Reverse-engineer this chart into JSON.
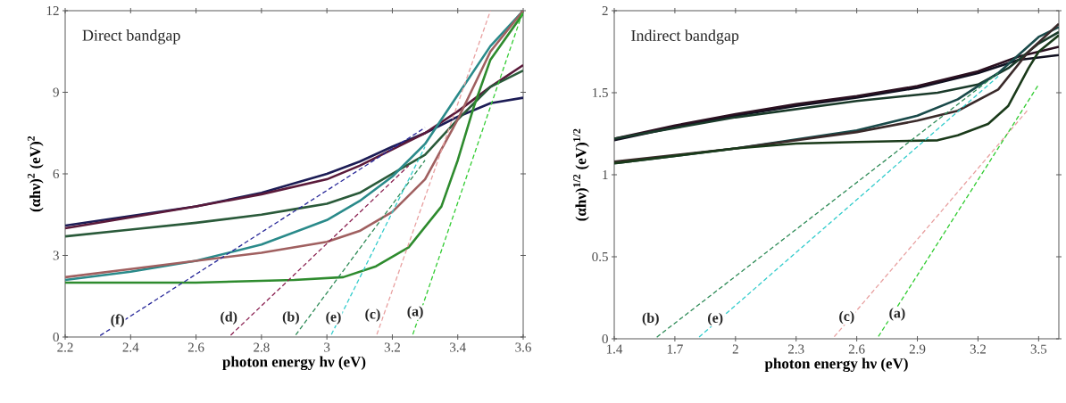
{
  "chart_data": [
    {
      "type": "line",
      "title": "Direct bandgap",
      "xlabel": "photon energy hν (eV)",
      "ylabel": "(αhν)$^{2}$ (eV)$^{2}$",
      "xlim": [
        2.2,
        3.6
      ],
      "ylim": [
        0,
        12
      ],
      "xticks": [
        2.2,
        2.4,
        2.6,
        2.8,
        3,
        3.2,
        3.4,
        3.6
      ],
      "yticks": [
        0,
        3,
        6,
        9,
        12
      ],
      "series": [
        {
          "color": "#1c1c55",
          "x": [
            2.2,
            2.4,
            2.6,
            2.8,
            3.0,
            3.1,
            3.2,
            3.3,
            3.4,
            3.5,
            3.6
          ],
          "values": [
            4.1,
            4.45,
            4.8,
            5.3,
            6.0,
            6.45,
            7.0,
            7.5,
            8.1,
            8.6,
            8.8
          ]
        },
        {
          "color": "#5a1a3a",
          "x": [
            2.2,
            2.4,
            2.6,
            2.8,
            3.0,
            3.1,
            3.2,
            3.3,
            3.4,
            3.5,
            3.6
          ],
          "values": [
            4.0,
            4.4,
            4.8,
            5.25,
            5.8,
            6.3,
            6.9,
            7.5,
            8.3,
            9.2,
            10.0
          ]
        },
        {
          "color": "#2a5a3a",
          "x": [
            2.2,
            2.4,
            2.6,
            2.8,
            2.9,
            3.0,
            3.1,
            3.2,
            3.3,
            3.4,
            3.5,
            3.6
          ],
          "values": [
            3.7,
            3.95,
            4.2,
            4.5,
            4.7,
            4.9,
            5.3,
            6.0,
            6.7,
            8.0,
            9.2,
            9.8
          ]
        },
        {
          "color": "#2a8a8a",
          "x": [
            2.2,
            2.4,
            2.6,
            2.8,
            3.0,
            3.1,
            3.2,
            3.3,
            3.4,
            3.5,
            3.6
          ],
          "values": [
            2.1,
            2.4,
            2.8,
            3.4,
            4.3,
            5.0,
            5.9,
            7.1,
            8.9,
            10.7,
            12.0
          ]
        },
        {
          "color": "#a06060",
          "x": [
            2.2,
            2.4,
            2.6,
            2.8,
            3.0,
            3.1,
            3.2,
            3.3,
            3.4,
            3.5,
            3.6
          ],
          "values": [
            2.2,
            2.5,
            2.8,
            3.1,
            3.5,
            3.9,
            4.6,
            5.8,
            8.0,
            10.5,
            12.0
          ]
        },
        {
          "color": "#2e8b2e",
          "x": [
            2.2,
            2.4,
            2.6,
            2.9,
            3.05,
            3.15,
            3.25,
            3.35,
            3.4,
            3.45,
            3.5,
            3.6
          ],
          "values": [
            2.0,
            2.0,
            2.0,
            2.1,
            2.2,
            2.6,
            3.3,
            4.8,
            6.5,
            8.5,
            10.2,
            11.9
          ]
        },
        {
          "color": "#2a2a9a",
          "line_style": "dashed",
          "x": [
            2.3,
            3.3
          ],
          "values": [
            0,
            7.7
          ]
        },
        {
          "color": "#8b2252",
          "line_style": "dashed",
          "x": [
            2.7,
            3.25
          ],
          "values": [
            0,
            6.3
          ]
        },
        {
          "color": "#2e8b57",
          "line_style": "dashed",
          "x": [
            2.9,
            3.3
          ],
          "values": [
            0,
            6.5
          ]
        },
        {
          "color": "#33cccc",
          "line_style": "dashed",
          "x": [
            3.01,
            3.3
          ],
          "values": [
            0,
            7.0
          ]
        },
        {
          "color": "#e8a0a0",
          "line_style": "dashed",
          "x": [
            3.15,
            3.5
          ],
          "values": [
            0,
            12.0
          ]
        },
        {
          "color": "#33cc33",
          "line_style": "dashed",
          "x": [
            3.26,
            3.6
          ],
          "values": [
            0,
            12.0
          ]
        }
      ],
      "annotations": [
        {
          "text": "(f)",
          "x": 2.36,
          "y": 0.6
        },
        {
          "text": "(d)",
          "x": 2.7,
          "y": 0.7
        },
        {
          "text": "(b)",
          "x": 2.89,
          "y": 0.7
        },
        {
          "text": "(e)",
          "x": 3.02,
          "y": 0.7
        },
        {
          "text": "(c)",
          "x": 3.14,
          "y": 0.8
        },
        {
          "text": "(a)",
          "x": 3.27,
          "y": 0.9
        }
      ]
    },
    {
      "type": "line",
      "title": "Indirect bandgap",
      "xlabel": "photon energy hν (eV)",
      "ylabel": "(αhν)$^{1/2}$ (eV)$^{1/2}$",
      "xlim": [
        1.4,
        3.6
      ],
      "ylim": [
        0,
        2
      ],
      "xticks": [
        1.4,
        1.7,
        2,
        2.3,
        2.6,
        2.9,
        3.2,
        3.5
      ],
      "yticks": [
        0,
        0.5,
        1,
        1.5,
        2
      ],
      "series": [
        {
          "color": "#101020",
          "x": [
            1.4,
            1.7,
            2.0,
            2.3,
            2.6,
            2.9,
            3.2,
            3.4,
            3.6
          ],
          "values": [
            1.21,
            1.29,
            1.36,
            1.42,
            1.47,
            1.53,
            1.62,
            1.7,
            1.73
          ]
        },
        {
          "color": "#2a1020",
          "x": [
            1.4,
            1.7,
            2.0,
            2.3,
            2.6,
            2.9,
            3.2,
            3.4,
            3.6
          ],
          "values": [
            1.22,
            1.3,
            1.37,
            1.43,
            1.48,
            1.54,
            1.63,
            1.72,
            1.78
          ]
        },
        {
          "color": "#1a3a2a",
          "x": [
            1.4,
            2.0,
            2.6,
            3.0,
            3.2,
            3.35,
            3.5,
            3.6
          ],
          "values": [
            1.22,
            1.35,
            1.45,
            1.5,
            1.55,
            1.65,
            1.8,
            1.87
          ]
        },
        {
          "color": "#1a4a4a",
          "x": [
            1.4,
            2.0,
            2.6,
            2.9,
            3.1,
            3.3,
            3.5,
            3.6
          ],
          "values": [
            1.07,
            1.16,
            1.27,
            1.36,
            1.46,
            1.62,
            1.84,
            1.9
          ]
        },
        {
          "color": "#3a2a2a",
          "x": [
            1.4,
            2.0,
            2.6,
            2.9,
            3.1,
            3.3,
            3.45,
            3.6
          ],
          "values": [
            1.08,
            1.16,
            1.26,
            1.33,
            1.39,
            1.52,
            1.75,
            1.92
          ]
        },
        {
          "color": "#1a3a1a",
          "x": [
            1.4,
            2.0,
            2.3,
            2.6,
            3.0,
            3.1,
            3.25,
            3.35,
            3.45,
            3.5,
            3.6
          ],
          "values": [
            1.07,
            1.16,
            1.19,
            1.2,
            1.21,
            1.24,
            1.31,
            1.42,
            1.65,
            1.75,
            1.85
          ]
        },
        {
          "color": "#2e8b57",
          "line_style": "dashed",
          "x": [
            1.6,
            3.3
          ],
          "values": [
            0,
            1.62
          ]
        },
        {
          "color": "#33cccc",
          "line_style": "dashed",
          "x": [
            1.81,
            3.3
          ],
          "values": [
            0,
            1.6
          ]
        },
        {
          "color": "#e8a0a0",
          "line_style": "dashed",
          "x": [
            2.48,
            3.45
          ],
          "values": [
            0,
            1.4
          ]
        },
        {
          "color": "#33cc33",
          "line_style": "dashed",
          "x": [
            2.7,
            3.5
          ],
          "values": [
            0,
            1.55
          ]
        }
      ],
      "annotations": [
        {
          "text": "(b)",
          "x": 1.58,
          "y": 0.12
        },
        {
          "text": "(e)",
          "x": 1.9,
          "y": 0.12
        },
        {
          "text": "(c)",
          "x": 2.55,
          "y": 0.13
        },
        {
          "text": "(a)",
          "x": 2.8,
          "y": 0.15
        }
      ]
    }
  ]
}
